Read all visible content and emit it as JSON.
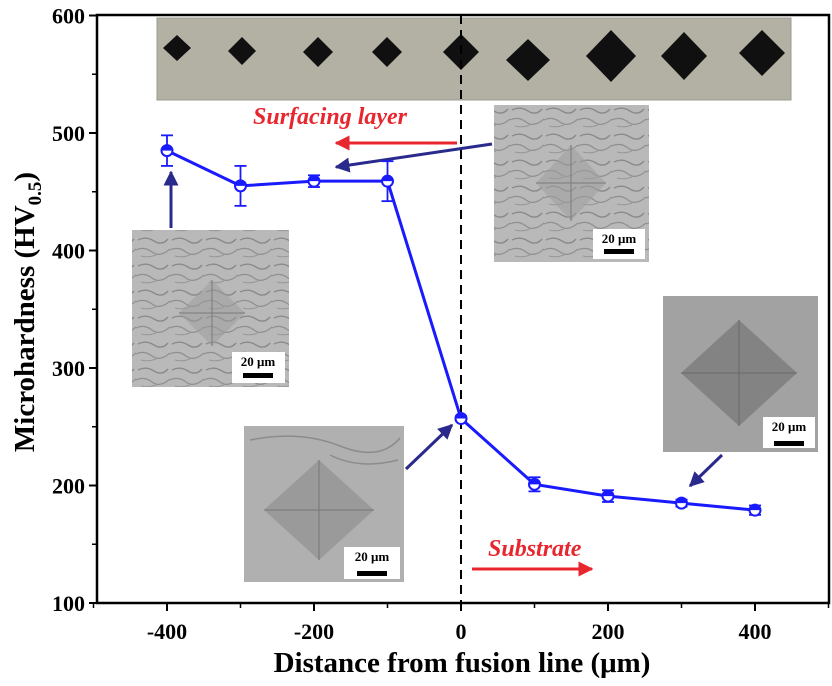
{
  "chart_data": {
    "type": "line",
    "xlabel": "Distance from fusion line (μm)",
    "ylabel_main": "Microhardness (HV",
    "ylabel_sub": "0.5",
    "ylabel_close": ")",
    "xlim": [
      -500,
      500
    ],
    "ylim": [
      100,
      600
    ],
    "xticks": [
      "-400",
      "-200",
      "0",
      "200",
      "400"
    ],
    "yticks": [
      "100",
      "200",
      "300",
      "400",
      "500",
      "600"
    ],
    "xtick_values": [
      -400,
      -200,
      0,
      200,
      400
    ],
    "ytick_values": [
      100,
      200,
      300,
      400,
      500,
      600
    ],
    "series": [
      {
        "color": "#1a1aff",
        "x": [
          -400,
          -300,
          -200,
          -100,
          0,
          100,
          200,
          300,
          400
        ],
        "y": [
          485,
          455,
          459,
          459,
          257,
          201,
          191,
          185,
          179
        ],
        "yerr": [
          13,
          17,
          5,
          17,
          2,
          6,
          5,
          3,
          4
        ]
      }
    ],
    "fusion_line_x": 0,
    "annotations": {
      "surfacing_layer": "Surfacing layer",
      "substrate": "Substrate",
      "annotation_color": "#e8262e"
    },
    "scale_bar_label": "20 μm"
  }
}
